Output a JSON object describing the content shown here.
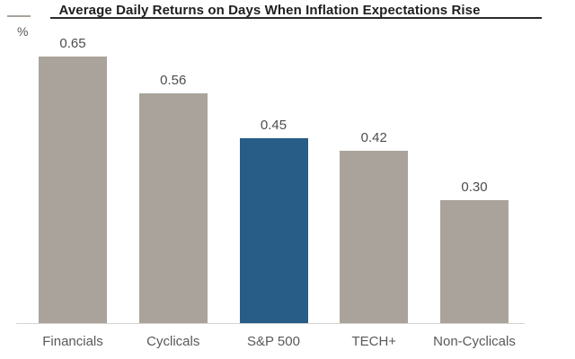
{
  "title": "Average Daily Returns on Days When Inflation Expectations Rise",
  "unit_label": "%",
  "chart_data": {
    "type": "bar",
    "title": "Average Daily Returns on Days When Inflation Expectations Rise",
    "xlabel": "",
    "ylabel": "%",
    "categories": [
      "Financials",
      "Cyclicals",
      "S&P 500",
      "TECH+",
      "Non-Cyclicals"
    ],
    "values": [
      0.65,
      0.56,
      0.45,
      0.42,
      0.3
    ],
    "value_labels": [
      "0.65",
      "0.56",
      "0.45",
      "0.42",
      "0.30"
    ],
    "highlight_index": 2,
    "ylim": [
      0,
      0.66
    ],
    "grid": false,
    "legend": false,
    "colors": {
      "bar": "#a9a39c",
      "highlight_bar": "#275d87",
      "title_text": "#1f1f1f",
      "value_text": "#4d4d4d",
      "category_text": "#595959",
      "baseline": "#d6d3d0",
      "title_rule": "#2b2b2b"
    }
  }
}
